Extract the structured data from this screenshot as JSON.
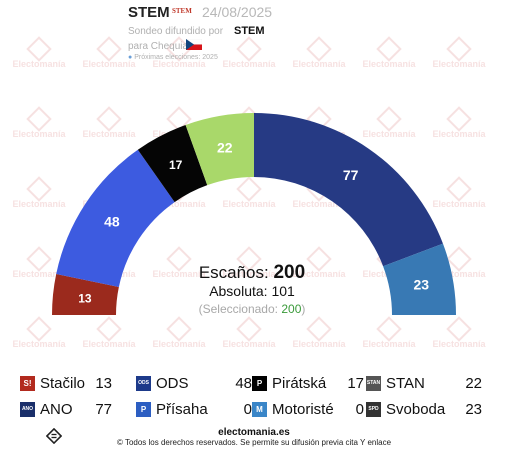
{
  "header": {
    "pollster": "STEM",
    "pollster_logo_text": "STEM",
    "date": "24/08/2025",
    "diffused_by": "Sondeo difundido por",
    "diffused_media": "STEM",
    "for_country": "para Chequia",
    "next_elections": "Próximas elecciones: 2025"
  },
  "watermark": "Electomanía",
  "center": {
    "seats_label": "Escaños:",
    "seats_total": "200",
    "absolute_label": "Absoluta:",
    "absolute_value": "101",
    "selected_label": "(Seleccionado:",
    "selected_value": "200",
    "selected_close": ")"
  },
  "chart_data": {
    "type": "parliament-hemicycle",
    "total_seats": 200,
    "majority": 101,
    "seats_order_left_to_right": [
      {
        "party": "Stačilo",
        "seats": 13,
        "color": "#9b2a1d"
      },
      {
        "party": "ODS",
        "seats": 48,
        "color": "#3d5be0"
      },
      {
        "party": "Pirátská",
        "seats": 17,
        "color": "#050505"
      },
      {
        "party": "STAN",
        "seats": 22,
        "color": "#a9d86a"
      },
      {
        "party": "ANO",
        "seats": 77,
        "color": "#263a84"
      },
      {
        "party": "Svoboda",
        "seats": 23,
        "color": "#3879b4"
      }
    ]
  },
  "legend": [
    {
      "name": "Stačilo",
      "seats": "13",
      "color": "#b22a1e",
      "logo": "S!"
    },
    {
      "name": "ODS",
      "seats": "48",
      "color": "#1d3a8a",
      "logo": "ODS"
    },
    {
      "name": "Pirátská",
      "seats": "17",
      "color": "#000000",
      "logo": "P"
    },
    {
      "name": "STAN",
      "seats": "22",
      "color": "#555555",
      "logo": "STAN"
    },
    {
      "name": "ANO",
      "seats": "77",
      "color": "#1a2f6a",
      "logo": "ANO"
    },
    {
      "name": "Přísaha",
      "seats": "0",
      "color": "#2c5ec2",
      "logo": "P"
    },
    {
      "name": "Motoristé",
      "seats": "0",
      "color": "#3a86c8",
      "logo": "M"
    },
    {
      "name": "Svoboda",
      "seats": "23",
      "color": "#333333",
      "logo": "SPD"
    }
  ],
  "footer": {
    "site": "electomania.es",
    "copyright": "© Todos los derechos reservados. Se permite su difusión previa cita Y enlace"
  }
}
